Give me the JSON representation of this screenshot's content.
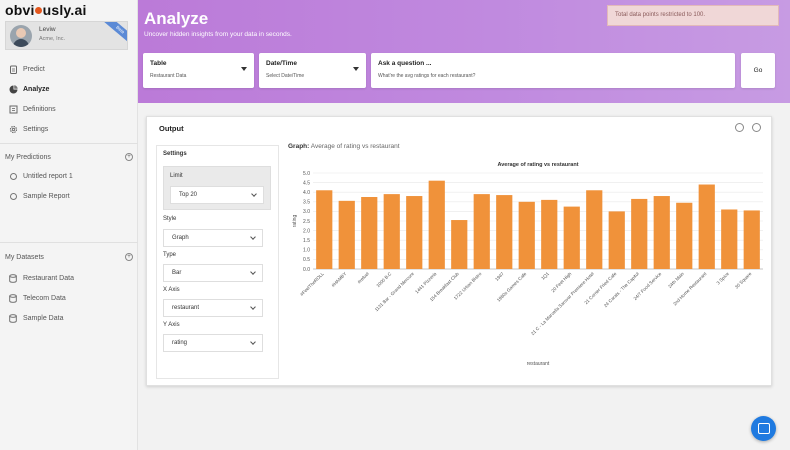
{
  "brand": {
    "logo_left": "obvi",
    "logo_right": "usly.ai"
  },
  "user": {
    "name": "Leviw",
    "org": "Acme, Inc.",
    "badge": "Beta"
  },
  "nav": [
    {
      "label": "Predict",
      "icon": "clipboard-icon"
    },
    {
      "label": "Analyze",
      "icon": "pie-chart-icon",
      "active": true
    },
    {
      "label": "Definitions",
      "icon": "book-icon"
    },
    {
      "label": "Settings",
      "icon": "gear-icon"
    }
  ],
  "predictions": {
    "heading": "My Predictions",
    "items": [
      "Untitled report 1",
      "Sample Report"
    ]
  },
  "datasets": {
    "heading": "My Datasets",
    "items": [
      "Restaurant Data",
      "Telecom Data",
      "Sample Data"
    ]
  },
  "header": {
    "title": "Analyze",
    "subtitle": "Uncover hidden insights from your data in seconds.",
    "toast": "Total data points restricted to 100."
  },
  "query": {
    "table": {
      "label": "Table",
      "value": "Restaurant Data"
    },
    "datetime": {
      "label": "Date/Time",
      "value": "Select Date/Time"
    },
    "ask": {
      "label": "Ask a question ...",
      "value": "What're the avg ratings for each restaurant?"
    },
    "go": "Go"
  },
  "output": {
    "title": "Output",
    "settings_title": "Settings",
    "limit_label": "Limit",
    "limit_value": "Top 20",
    "style_label": "Style",
    "style_value": "Graph",
    "type_label": "Type",
    "type_value": "Bar",
    "xaxis_label": "X Axis",
    "xaxis_value": "restaurant",
    "yaxis_label": "Y Axis",
    "yaxis_value": "rating",
    "graph_prefix": "Graph:",
    "graph_desc": "Average of rating vs restaurant"
  },
  "chart_data": {
    "type": "bar",
    "title": "Average of rating vs restaurant",
    "xlabel": "restaurant",
    "ylabel": "rating",
    "ylim": [
      0,
      5.0
    ],
    "yticks": [
      0,
      0.5,
      1.0,
      1.5,
      2.0,
      2.5,
      3.0,
      3.5,
      4.0,
      4.5,
      5.0
    ],
    "grid": true,
    "color": "#f0923a",
    "categories": [
      "#FeelTheROLL",
      "#HAMBY",
      "#refuel",
      "1000 B.C",
      "1131 Bar - Grand Mercure",
      "1441 Pizzeria",
      "154 Breakfast Club",
      "1722 Urban Bistro",
      "1947",
      "1980s Games Cafe",
      "1Q1",
      "20 Feet High",
      "21 C - La Marvella Sarovar Premiere Hotel",
      "21 Corner Fried Cafe",
      "24 Carats - The Capitol",
      "24/7 Food Service",
      "24th Main",
      "2nd Home Restaurant",
      "3 Spice",
      "30 Square"
    ],
    "values": [
      4.1,
      3.55,
      3.75,
      3.9,
      3.8,
      4.6,
      2.55,
      3.9,
      3.85,
      3.5,
      3.6,
      3.25,
      4.1,
      3.0,
      3.65,
      3.8,
      3.45,
      4.4,
      3.1,
      3.05
    ]
  }
}
